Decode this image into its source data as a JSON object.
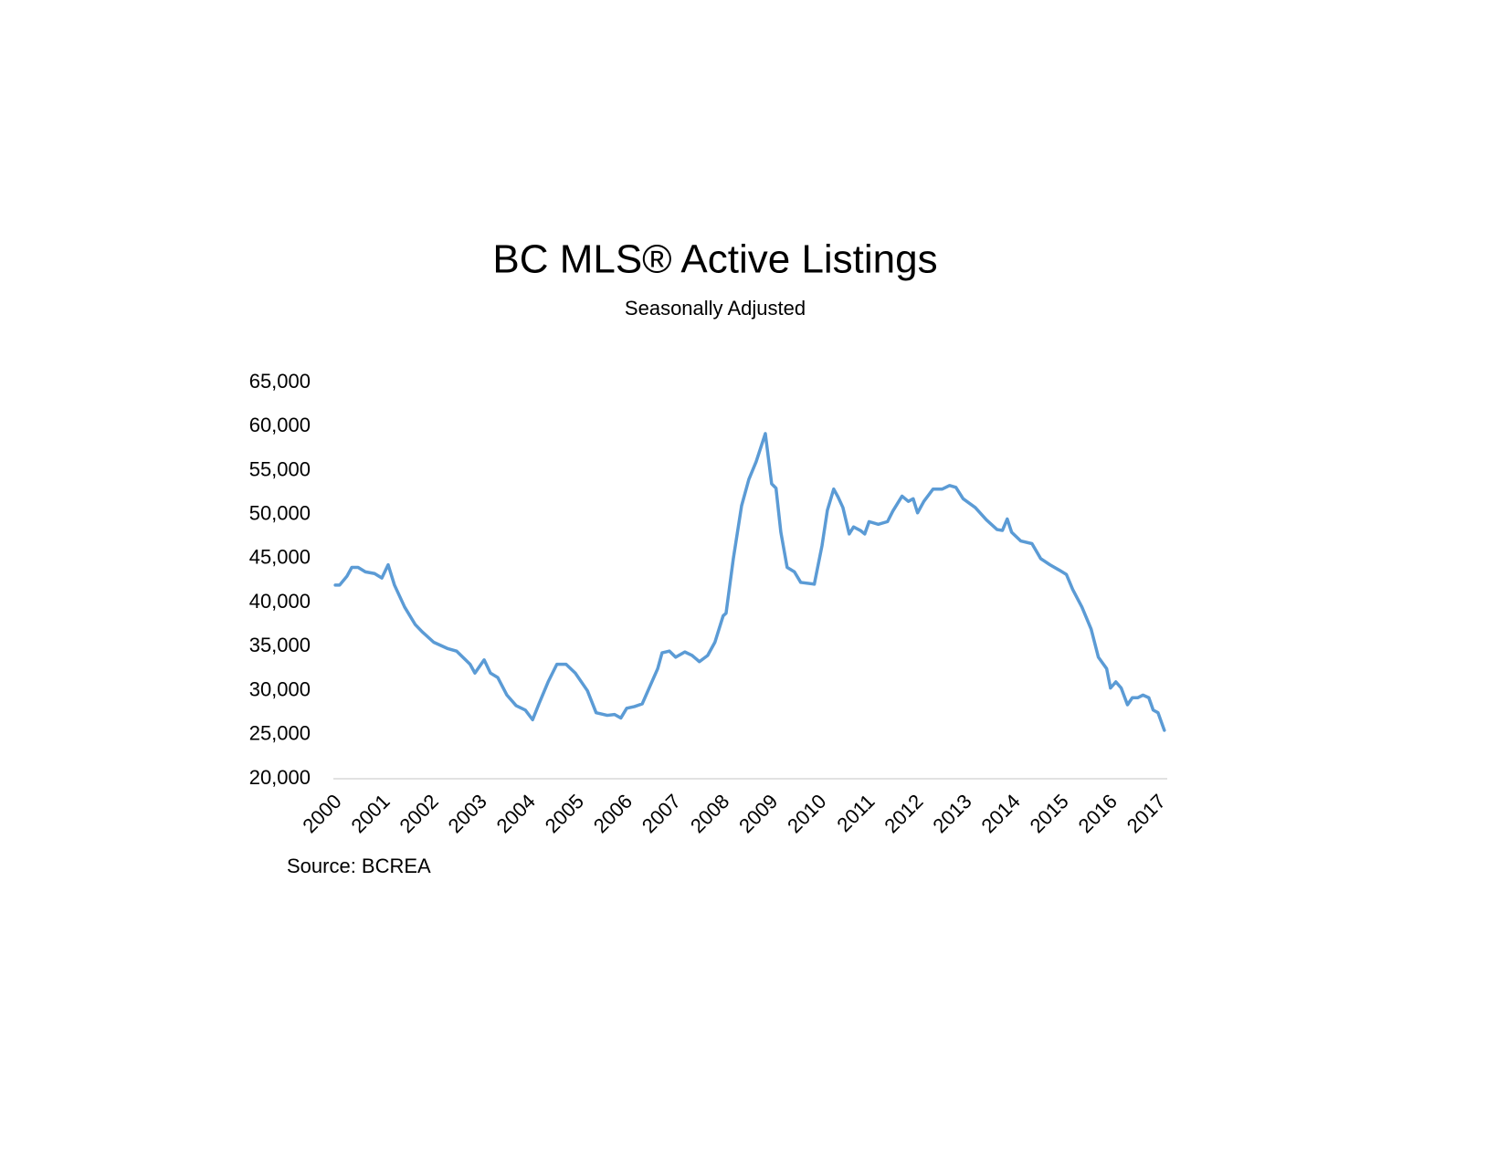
{
  "chart_data": {
    "type": "line",
    "title": "BC MLS® Active Listings",
    "subtitle": "Seasonally Adjusted",
    "source": "Source: BCREA",
    "color": "#5b9bd5",
    "x": [
      2000.04,
      2000.13,
      2000.28,
      2000.38,
      2000.51,
      2000.66,
      2000.85,
      2001.0,
      2001.13,
      2001.26,
      2001.47,
      2001.69,
      2001.83,
      2002.07,
      2002.35,
      2002.54,
      2002.82,
      2002.92,
      2003.11,
      2003.24,
      2003.39,
      2003.58,
      2003.77,
      2003.96,
      2004.11,
      2004.24,
      2004.43,
      2004.61,
      2004.8,
      2004.99,
      2005.24,
      2005.42,
      2005.65,
      2005.8,
      2005.93,
      2006.05,
      2006.21,
      2006.37,
      2006.53,
      2006.69,
      2006.78,
      2006.93,
      2007.06,
      2007.25,
      2007.4,
      2007.55,
      2007.72,
      2007.87,
      2008.04,
      2008.1,
      2008.25,
      2008.42,
      2008.57,
      2008.72,
      2008.91,
      2009.04,
      2009.13,
      2009.23,
      2009.36,
      2009.51,
      2009.64,
      2009.92,
      2010.08,
      2010.19,
      2010.32,
      2010.41,
      2010.51,
      2010.64,
      2010.73,
      2010.87,
      2010.96,
      2011.05,
      2011.24,
      2011.43,
      2011.54,
      2011.73,
      2011.86,
      2011.96,
      2012.05,
      2012.18,
      2012.37,
      2012.56,
      2012.71,
      2012.84,
      2012.99,
      2013.24,
      2013.47,
      2013.69,
      2013.8,
      2013.9,
      2013.99,
      2014.18,
      2014.41,
      2014.59,
      2014.78,
      2014.97,
      2015.12,
      2015.25,
      2015.44,
      2015.63,
      2015.78,
      2015.95,
      2016.03,
      2016.14,
      2016.25,
      2016.38,
      2016.48,
      2016.59,
      2016.7,
      2016.82,
      2016.91,
      2017.01,
      2017.14
    ],
    "values": [
      42000,
      42000,
      43000,
      44000,
      44000,
      43500,
      43300,
      42800,
      44300,
      42000,
      39500,
      37500,
      36700,
      35500,
      34800,
      34500,
      33000,
      32000,
      33500,
      32000,
      31500,
      29500,
      28300,
      27800,
      26700,
      28500,
      31000,
      33000,
      33000,
      32000,
      30000,
      27500,
      27200,
      27300,
      26900,
      28000,
      28200,
      28500,
      30500,
      32500,
      34300,
      34500,
      33800,
      34400,
      34000,
      33300,
      34000,
      35500,
      38500,
      38800,
      45000,
      51000,
      54000,
      56000,
      59200,
      53500,
      53000,
      48000,
      44000,
      43500,
      42300,
      42100,
      46500,
      50500,
      52900,
      52000,
      50800,
      47800,
      48600,
      48200,
      47800,
      49200,
      48900,
      49200,
      50400,
      52100,
      51500,
      51800,
      50200,
      51500,
      52900,
      52900,
      53300,
      53100,
      51800,
      50800,
      49400,
      48300,
      48200,
      49500,
      48000,
      47000,
      46700,
      45000,
      44300,
      43700,
      43200,
      41500,
      39500,
      37000,
      33800,
      32500,
      30300,
      31000,
      30300,
      28400,
      29200,
      29200,
      29500,
      29200,
      27800,
      27500,
      25500
    ],
    "xlim": [
      2000,
      2017.2
    ],
    "xticks": [
      2000,
      2001,
      2002,
      2003,
      2004,
      2005,
      2006,
      2007,
      2008,
      2009,
      2010,
      2011,
      2012,
      2013,
      2014,
      2015,
      2016,
      2017
    ],
    "ylim": [
      20000,
      65000
    ],
    "yticks": [
      {
        "value": 20000,
        "label": "20,000"
      },
      {
        "value": 25000,
        "label": "25,000"
      },
      {
        "value": 30000,
        "label": "30,000"
      },
      {
        "value": 35000,
        "label": "35,000"
      },
      {
        "value": 40000,
        "label": "40,000"
      },
      {
        "value": 45000,
        "label": "45,000"
      },
      {
        "value": 50000,
        "label": "50,000"
      },
      {
        "value": 55000,
        "label": "55,000"
      },
      {
        "value": 60000,
        "label": "60,000"
      },
      {
        "value": 65000,
        "label": "65,000"
      }
    ],
    "grid": false
  }
}
